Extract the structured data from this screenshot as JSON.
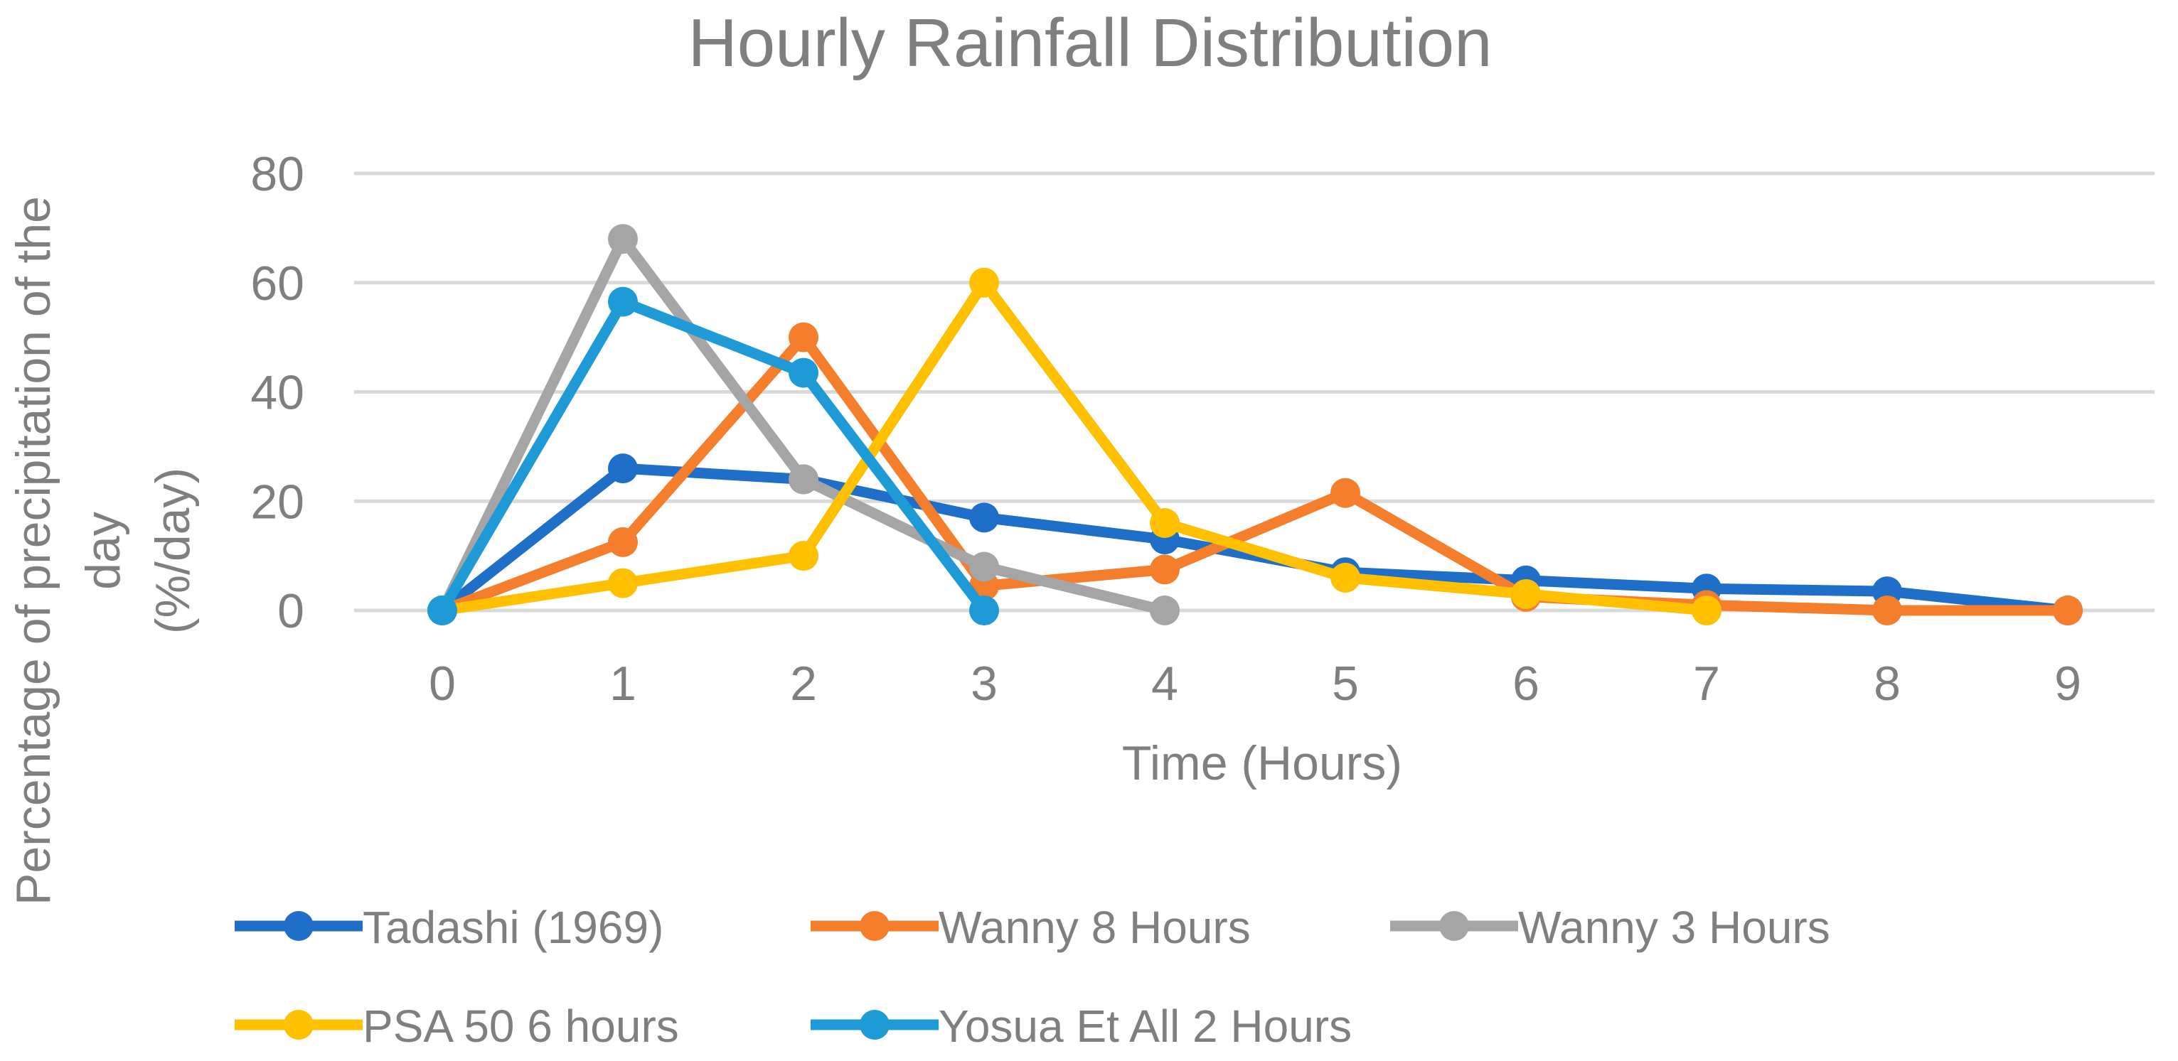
{
  "chart_data": {
    "type": "line",
    "title": "Hourly Rainfall Distribution",
    "xlabel": "Time (Hours)",
    "ylabel_lines": [
      "Percentage of precipitation of the",
      "day",
      "(%/day)"
    ],
    "x_ticks": [
      "0",
      "1",
      "2",
      "3",
      "4",
      "5",
      "6",
      "7",
      "8",
      "9"
    ],
    "y_ticks": [
      "0",
      "20",
      "40",
      "60",
      "80"
    ],
    "xlim": [
      0,
      9
    ],
    "ylim": [
      0,
      80
    ],
    "grid": true,
    "legend_position": "bottom",
    "series": [
      {
        "name": "Tadashi (1969)",
        "color": "#1f6fc9",
        "x": [
          0,
          1,
          2,
          3,
          4,
          5,
          6,
          7,
          8,
          9
        ],
        "y": [
          0,
          26,
          24,
          17,
          13,
          7,
          5.5,
          4,
          3.5,
          0
        ]
      },
      {
        "name": "Wanny 8 Hours",
        "color": "#f47e2c",
        "x": [
          0,
          1,
          2,
          3,
          4,
          5,
          6,
          7,
          8,
          9
        ],
        "y": [
          0,
          12.5,
          50,
          4.5,
          7.5,
          21.5,
          2.5,
          1,
          0,
          0
        ]
      },
      {
        "name": "Wanny 3 Hours",
        "color": "#a5a5a5",
        "x": [
          0,
          1,
          2,
          3,
          4
        ],
        "y": [
          0,
          68,
          24,
          8,
          0
        ]
      },
      {
        "name": "PSA 50 6 hours",
        "color": "#ffc000",
        "x": [
          0,
          1,
          2,
          3,
          4,
          5,
          6,
          7
        ],
        "y": [
          0,
          5,
          10,
          60,
          16,
          6,
          3,
          0
        ]
      },
      {
        "name": "Yosua Et All 2 Hours",
        "color": "#1e9bd7",
        "x": [
          0,
          1,
          2,
          3
        ],
        "y": [
          0,
          56.5,
          43.5,
          0
        ]
      }
    ]
  }
}
